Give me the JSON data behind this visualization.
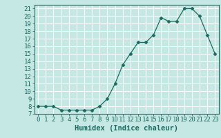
{
  "x": [
    0,
    1,
    2,
    3,
    4,
    5,
    6,
    7,
    8,
    9,
    10,
    11,
    12,
    13,
    14,
    15,
    16,
    17,
    18,
    19,
    20,
    21,
    22,
    23
  ],
  "y": [
    8.0,
    8.0,
    8.0,
    7.5,
    7.5,
    7.5,
    7.5,
    7.5,
    8.0,
    9.0,
    11.0,
    13.5,
    15.0,
    16.5,
    16.5,
    17.5,
    19.8,
    19.3,
    19.3,
    21.0,
    21.0,
    20.0,
    17.5,
    15.0
  ],
  "xlabel": "Humidex (Indice chaleur)",
  "ylim": [
    7,
    21.5
  ],
  "xlim": [
    -0.5,
    23.5
  ],
  "yticks": [
    7,
    8,
    9,
    10,
    11,
    12,
    13,
    14,
    15,
    16,
    17,
    18,
    19,
    20,
    21
  ],
  "xtick_labels": [
    "0",
    "1",
    "2",
    "3",
    "4",
    "5",
    "6",
    "7",
    "8",
    "9",
    "10",
    "11",
    "12",
    "13",
    "14",
    "15",
    "16",
    "17",
    "18",
    "19",
    "20",
    "21",
    "22",
    "23"
  ],
  "line_color": "#1a6b5e",
  "marker": "D",
  "markersize": 2.5,
  "bg_color": "#c5e8e5",
  "grid_color": "#ffffff",
  "tick_label_fontsize": 6.5,
  "xlabel_fontsize": 7.5
}
